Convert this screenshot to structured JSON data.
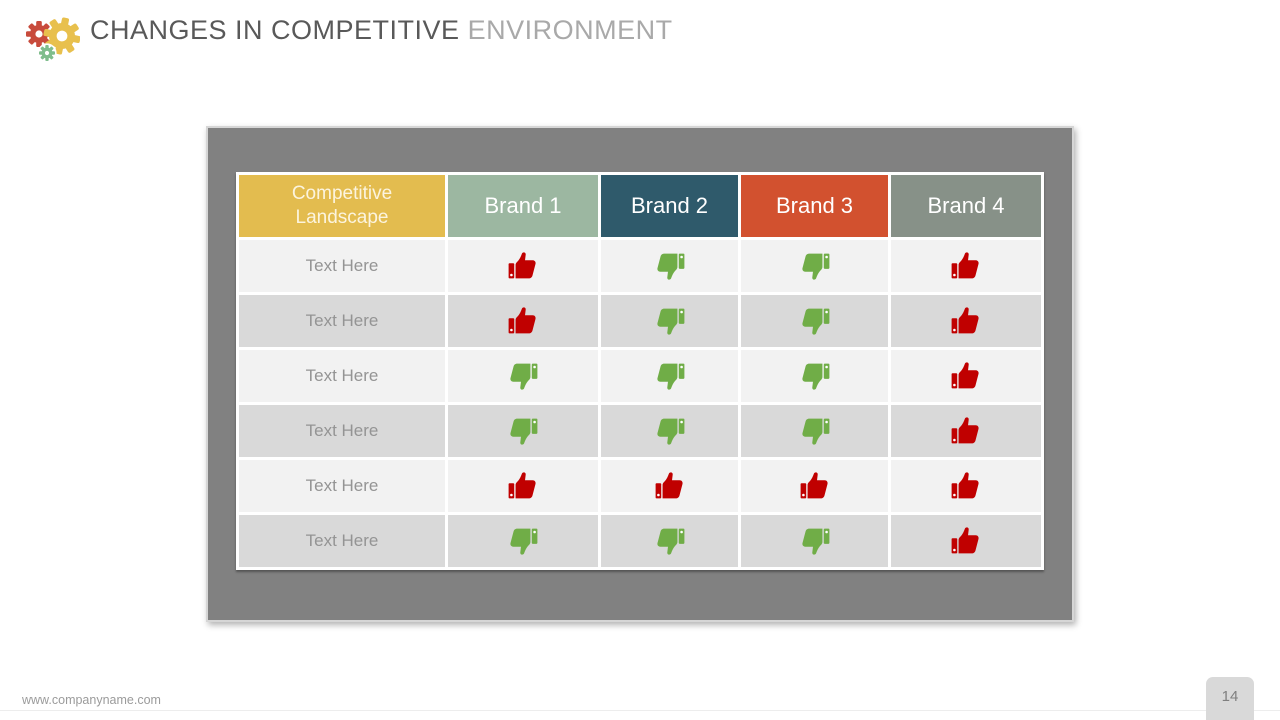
{
  "slide": {
    "title": {
      "primary": "CHANGES IN COMPETITIVE",
      "secondary": "ENVIRONMENT"
    },
    "footer": {
      "website": "www.companyname.com",
      "page_number": "14"
    }
  },
  "table": {
    "headers": [
      {
        "label": "Competitive Landscape",
        "color": "#E3BC4F",
        "text_color": "#FCF4DE"
      },
      {
        "label": "Brand 1",
        "color": "#9CB7A1",
        "text_color": "#FFFFFF"
      },
      {
        "label": "Brand 2",
        "color": "#2F5A6B",
        "text_color": "#FFFFFF"
      },
      {
        "label": "Brand 3",
        "color": "#D2512F",
        "text_color": "#FFFFFF"
      },
      {
        "label": "Brand 4",
        "color": "#879188",
        "text_color": "#FFFFFF"
      }
    ],
    "rows": [
      {
        "label": "Text Here",
        "ratings": [
          "up",
          "down",
          "down",
          "up"
        ]
      },
      {
        "label": "Text Here",
        "ratings": [
          "up",
          "down",
          "down",
          "up"
        ]
      },
      {
        "label": "Text Here",
        "ratings": [
          "down",
          "down",
          "down",
          "up"
        ]
      },
      {
        "label": "Text Here",
        "ratings": [
          "down",
          "down",
          "down",
          "up"
        ]
      },
      {
        "label": "Text Here",
        "ratings": [
          "up",
          "up",
          "up",
          "up"
        ]
      },
      {
        "label": "Text Here",
        "ratings": [
          "down",
          "down",
          "down",
          "up"
        ]
      }
    ],
    "row_colors": {
      "odd": "#F2F2F2",
      "even": "#D9D9D9"
    },
    "label_text_color": "#949494"
  },
  "icons": {
    "thumb_up_color": "#C00000",
    "thumb_down_color": "#70AD47",
    "gear_red": "#C84B3C",
    "gear_yellow": "#E8C04D",
    "gear_green": "#7FBD8C"
  }
}
